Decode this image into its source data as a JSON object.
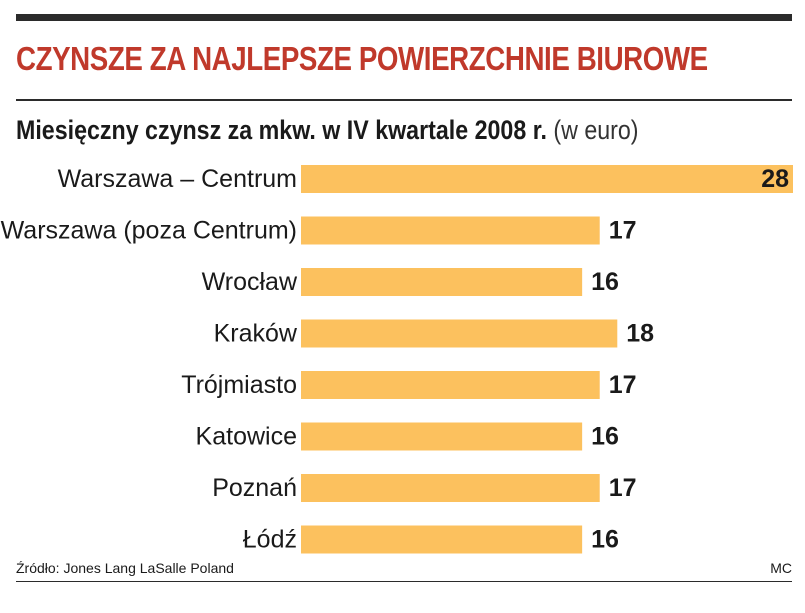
{
  "header": {
    "title": "CZYNSZE ZA NAJLEPSZE POWIERZCHNIE BIUROWE"
  },
  "subtitle": {
    "main": "Miesięczny czynsz za mkw. w IV kwartale 2008 r.",
    "unit": "(w euro)"
  },
  "footer": {
    "source": "Źródło: Jones Lang LaSalle Poland",
    "credit": "MC"
  },
  "colors": {
    "bar": "#fcc15e",
    "title": "#c0392b"
  },
  "chart_data": {
    "type": "bar",
    "orientation": "horizontal",
    "title": "CZYNSZE ZA NAJLEPSZE POWIERZCHNIE BIUROWE",
    "subtitle": "Miesięczny czynsz za mkw. w IV kwartale 2008 r. (w euro)",
    "categories": [
      "Warszawa – Centrum",
      "Warszawa (poza Centrum)",
      "Wrocław",
      "Kraków",
      "Trójmiasto",
      "Katowice",
      "Poznań",
      "Łódź"
    ],
    "values": [
      28,
      17,
      16,
      18,
      17,
      16,
      17,
      16
    ],
    "data_labels": [
      "28",
      "17",
      "16",
      "18",
      "17",
      "16",
      "17",
      "16"
    ],
    "xlim": [
      0,
      28
    ],
    "grid": false,
    "legend": "none"
  }
}
